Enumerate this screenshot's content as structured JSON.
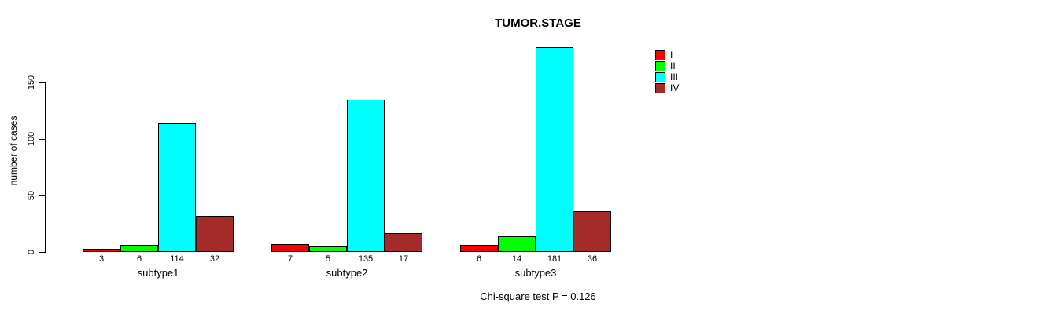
{
  "chart_data": {
    "type": "bar",
    "title": "TUMOR.STAGE",
    "ylabel": "number of cases",
    "categories": [
      "subtype1",
      "subtype2",
      "subtype3"
    ],
    "series": [
      {
        "name": "I",
        "color": "#FF0000",
        "values": [
          3,
          7,
          6
        ]
      },
      {
        "name": "II",
        "color": "#00FF00",
        "values": [
          6,
          5,
          14
        ]
      },
      {
        "name": "III",
        "color": "#00FFFF",
        "values": [
          114,
          135,
          181
        ]
      },
      {
        "name": "IV",
        "color": "#A52A2A",
        "values": [
          32,
          17,
          36
        ]
      }
    ],
    "yticks": [
      0,
      50,
      100,
      150
    ],
    "ylim": [
      0,
      150
    ],
    "grid": false,
    "bar_value_labels": true,
    "legend_position": "top-right",
    "annotation": "Chi-square test P = 0.126",
    "bar_border_color": "#000000",
    "background_color": "#FFFFFF"
  }
}
